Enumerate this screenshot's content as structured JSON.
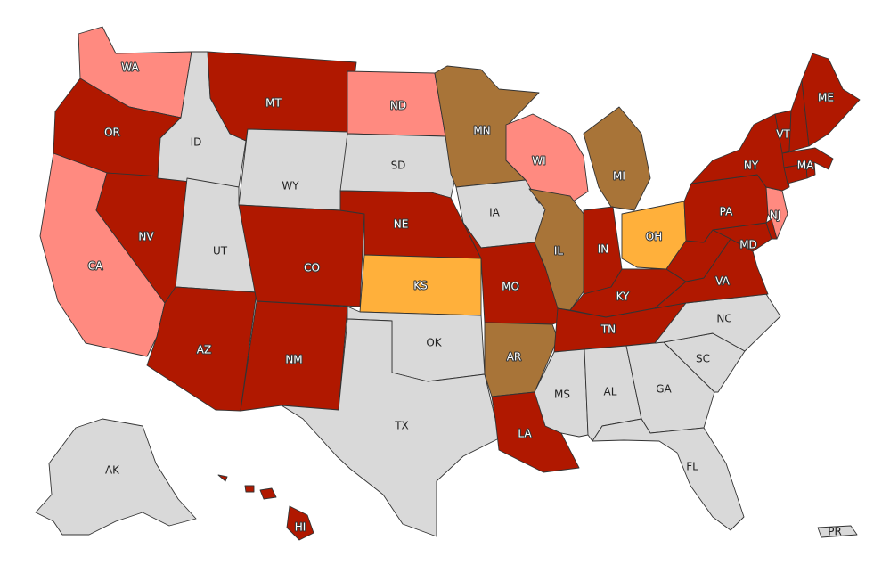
{
  "colors": {
    "dark_red": "#b01800",
    "pink": "#ff8a80",
    "brown": "#a87438",
    "orange": "#ffb03b",
    "gray": "#d9d9d9"
  },
  "states": [
    {
      "abbr": "WA",
      "label": "WA",
      "color": "pink"
    },
    {
      "abbr": "OR",
      "label": "OR",
      "color": "dark_red"
    },
    {
      "abbr": "CA",
      "label": "CA",
      "color": "pink"
    },
    {
      "abbr": "NV",
      "label": "NV",
      "color": "dark_red"
    },
    {
      "abbr": "ID",
      "label": "ID",
      "color": "gray"
    },
    {
      "abbr": "MT",
      "label": "MT",
      "color": "dark_red"
    },
    {
      "abbr": "WY",
      "label": "WY",
      "color": "gray"
    },
    {
      "abbr": "UT",
      "label": "UT",
      "color": "gray"
    },
    {
      "abbr": "AZ",
      "label": "AZ",
      "color": "dark_red"
    },
    {
      "abbr": "CO",
      "label": "CO",
      "color": "dark_red"
    },
    {
      "abbr": "NM",
      "label": "NM",
      "color": "dark_red"
    },
    {
      "abbr": "ND",
      "label": "ND",
      "color": "pink"
    },
    {
      "abbr": "SD",
      "label": "SD",
      "color": "gray"
    },
    {
      "abbr": "NE",
      "label": "NE",
      "color": "dark_red"
    },
    {
      "abbr": "KS",
      "label": "KS",
      "color": "orange"
    },
    {
      "abbr": "OK",
      "label": "OK",
      "color": "gray"
    },
    {
      "abbr": "TX",
      "label": "TX",
      "color": "gray"
    },
    {
      "abbr": "MN",
      "label": "MN",
      "color": "brown"
    },
    {
      "abbr": "IA",
      "label": "IA",
      "color": "gray"
    },
    {
      "abbr": "MO",
      "label": "MO",
      "color": "dark_red"
    },
    {
      "abbr": "AR",
      "label": "AR",
      "color": "brown"
    },
    {
      "abbr": "LA",
      "label": "LA",
      "color": "dark_red"
    },
    {
      "abbr": "WI",
      "label": "WI",
      "color": "pink"
    },
    {
      "abbr": "IL",
      "label": "IL",
      "color": "brown"
    },
    {
      "abbr": "MI",
      "label": "MI",
      "color": "brown"
    },
    {
      "abbr": "IN",
      "label": "IN",
      "color": "dark_red"
    },
    {
      "abbr": "OH",
      "label": "OH",
      "color": "orange"
    },
    {
      "abbr": "KY",
      "label": "KY",
      "color": "dark_red"
    },
    {
      "abbr": "TN",
      "label": "TN",
      "color": "dark_red"
    },
    {
      "abbr": "MS",
      "label": "MS",
      "color": "gray"
    },
    {
      "abbr": "AL",
      "label": "AL",
      "color": "gray"
    },
    {
      "abbr": "GA",
      "label": "GA",
      "color": "gray"
    },
    {
      "abbr": "FL",
      "label": "FL",
      "color": "gray"
    },
    {
      "abbr": "SC",
      "label": "SC",
      "color": "gray"
    },
    {
      "abbr": "NC",
      "label": "NC",
      "color": "gray"
    },
    {
      "abbr": "VA",
      "label": "VA",
      "color": "dark_red"
    },
    {
      "abbr": "WV",
      "label": "",
      "color": "dark_red"
    },
    {
      "abbr": "MD",
      "label": "MD",
      "color": "dark_red"
    },
    {
      "abbr": "DE",
      "label": "",
      "color": "dark_red"
    },
    {
      "abbr": "PA",
      "label": "PA",
      "color": "dark_red"
    },
    {
      "abbr": "NJ",
      "label": "NJ",
      "color": "pink"
    },
    {
      "abbr": "NY",
      "label": "NY",
      "color": "dark_red"
    },
    {
      "abbr": "CT",
      "label": "",
      "color": "dark_red"
    },
    {
      "abbr": "RI",
      "label": "",
      "color": "dark_red"
    },
    {
      "abbr": "MA",
      "label": "MA",
      "color": "dark_red"
    },
    {
      "abbr": "VT",
      "label": "VT",
      "color": "dark_red"
    },
    {
      "abbr": "NH",
      "label": "",
      "color": "dark_red"
    },
    {
      "abbr": "ME",
      "label": "ME",
      "color": "dark_red"
    },
    {
      "abbr": "AK",
      "label": "AK",
      "color": "gray"
    },
    {
      "abbr": "HI",
      "label": "HI",
      "color": "dark_red"
    },
    {
      "abbr": "PR",
      "label": "PR",
      "color": "gray"
    }
  ]
}
